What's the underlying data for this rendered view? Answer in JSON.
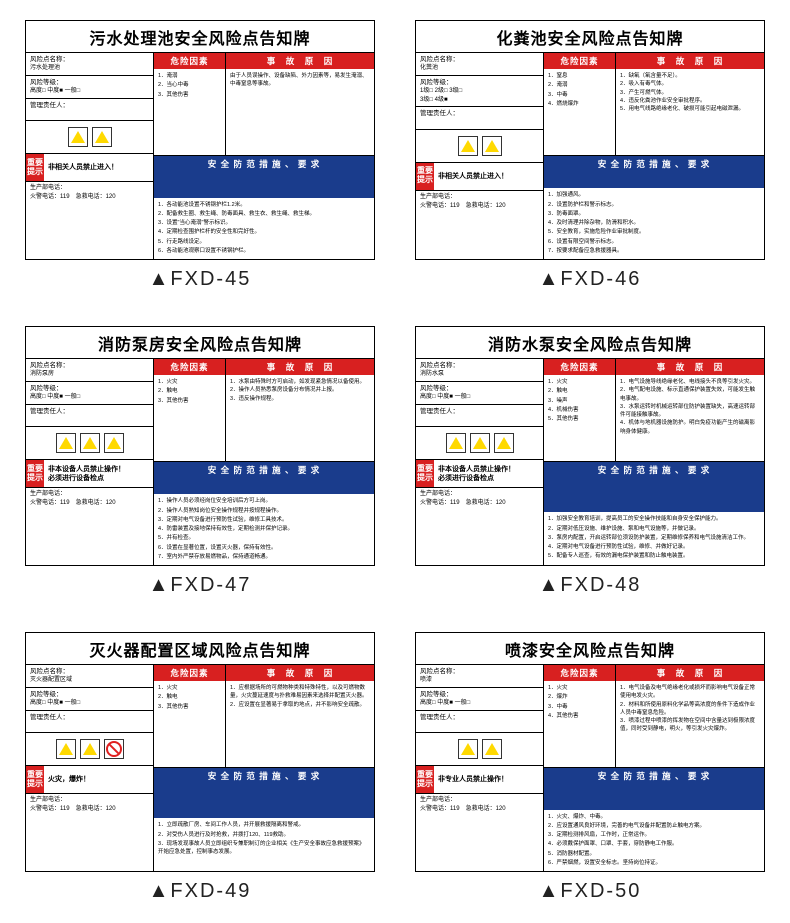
{
  "common": {
    "hazard_header": "危险因素",
    "cause_header": "事　故　原　因",
    "measure_header": "安 全 防 范 措 施 、 要 求",
    "tip_label": "重要提示",
    "name_label": "风险点名称：",
    "level_label": "风险等级：",
    "levels": "高度□ 中度■ 一般□",
    "manager_label": "管理责任人：",
    "phone1_label": "生产部电话：",
    "phone2": "火警电话：119　急救电话：120"
  },
  "cards": [
    {
      "id": "FXD-45",
      "title": "污水处理池安全风险点告知牌",
      "name": "污水处理池",
      "hazards": [
        "1．淹溺",
        "2．当心中毒",
        "3．其他伤害"
      ],
      "causes": "由于人员误操作、设备缺陷、外力因素等，易发生淹溺、中毒窒息等事故。",
      "measures": [
        "1．各动能池设置不锈钢护栏1.2米。",
        "2．配备救生圈、救生绳、防毒面具、救生衣、救生绳、救生梯。",
        "3．设置\"当心淹溺\"警示标识。",
        "4．定期检查围护栏杆的安全性和完好性。",
        "5．行走路线设定。",
        "6．各动能池观察口设置不锈钢护栏。"
      ],
      "tip": "非相关人员禁止进入！",
      "icons": [
        "y",
        "y"
      ]
    },
    {
      "id": "FXD-46",
      "title": "化粪池安全风险点告知牌",
      "name": "化粪池",
      "levels_alt": "1级□ 2级□ 3级□\n3级□ 4级■",
      "hazards": [
        "1．窒息",
        "2．淹溺",
        "3．中毒",
        "4．燃烧爆炸"
      ],
      "causes": "1．缺氧（氧含量不足）。\n2．吸入有毒气体。\n3．产生可燃气体。\n4．违反化粪池作业安全审批程序。\n5．用电气线路绝缘老化、破损可能引起电磁泄漏。",
      "measures": [
        "1．加强通风。",
        "2．设置防护栏和警示标志。",
        "3．防毒面罩。",
        "4．及时清理并除杂物，防滑和积水。",
        "5．安全教育，实施危险作业审批制度。",
        "6．设置有限空间警示标志。",
        "7．按要求配备应急救援器具。"
      ],
      "tip": "非相关人员禁止进入！",
      "icons": [
        "y",
        "y"
      ]
    },
    {
      "id": "FXD-47",
      "title": "消防泵房安全风险点告知牌",
      "name": "消防泵房",
      "hazards": [
        "1．火灾",
        "2．触电",
        "3．其他伤害"
      ],
      "causes": "1．水泵由特殊时方可启动，如发现紧急情况以备使用。\n2．操作人员熟悉泵房设备分布情况并上报。\n3．违反操作规程。",
      "measures": [
        "1．操作人员必须经岗位安全培训后方可上岗。",
        "2．操作人员熟知岗位安全操作规程并按规程操作。",
        "3．定期对电气设备进行预防性试验，维修工具技术。",
        "4．防雷装置及接地保持有效性，定期检测并保护记录。",
        "5．并有检查。",
        "6．设置在显著位置，设置灭火器，保持有效性。",
        "7．室内外严禁存放易燃物品，保持通道畅通。"
      ],
      "tip": "非本设备人员禁止操作！\n必须进行设备检点",
      "icons": [
        "y",
        "y",
        "y"
      ]
    },
    {
      "id": "FXD-48",
      "title": "消防水泵安全风险点告知牌",
      "name": "消防水泵",
      "hazards": [
        "1．火灾",
        "2．触电",
        "3．噪声",
        "4．机械伤害",
        "5．其他伤害"
      ],
      "causes": "1．电气设施导线绝缘老化、电线接头不良等引发火灾。\n2．电气配电设施、标示直通保护装置失效，可能发生触电事故。\n3．水泵运转时机械运转部位防护装置缺失，高速运转部件可能接触事故。\n4．机体与地机器设施防护。明白免疫功能产生的磁离影响身体健康。",
      "measures": [
        "1．加强安全教育培训，提高员工的安全操作技能和自身安全保护能力。",
        "2．定期对低压设施、维护设施、泵和电气设施等，并做记录。",
        "3．泵房内配置，开启运转部位须设防护装置，定期维修保养和电气设施清洁工作。",
        "4．定期对电气设备进行预防性试验，维修、并做好记录。",
        "5．配备专人巡查，有效的漏电保护装置和防止触电装置。"
      ],
      "tip": "非本设备人员禁止操作！\n必须进行设备检点",
      "icons": [
        "y",
        "y",
        "y"
      ]
    },
    {
      "id": "FXD-49",
      "title": "灭火器配置区域风险点告知牌",
      "name": "灭火器配置区域",
      "hazards": [
        "1．火灾",
        "2．触电",
        "3．其他伤害"
      ],
      "causes": "1．应根据场所的可燃物种类和特殊特性，以及可燃物数量，火灾蔓延速度与扑救难易因素来选择并配置灭火器。\n2．应设置在显著易于拿取的地点，并不影响安全疏散。",
      "measures": [
        "1．立即疏散厂房、车间工作人员，并开展救援隔离和警戒。",
        "2．对受伤人员进行及时抢救，并拨打120、119救助。",
        "3．现场发现事故人员立即组织专兼职制订的企业相关《生产安全事故应急救援预案》开始应急处置，控制事态发展。"
      ],
      "tip": "火灾，爆炸！",
      "icons": [
        "y",
        "y",
        "r"
      ]
    },
    {
      "id": "FXD-50",
      "title": "喷漆安全风险点告知牌",
      "name": "喷漆",
      "hazards": [
        "1．火灾",
        "2．爆炸",
        "3．中毒",
        "4．其他伤害"
      ],
      "causes": "1．电气设备及电气绝缘老化或损坏而影响电气设备正常使用电发火灾。\n2．材料和所使用原料化学品等高浓度的条件下造成作业人员中毒窒息危险。\n3．喷漆过程中喷漆的挥发物在空间中含量达到极限浓度值，同时受到静电，明火，等引发火灾爆炸。",
      "measures": [
        "1．火灾、爆炸、中毒。",
        "2．应设置通风良好环境，完善的电气设备并配置防止触电方案。",
        "3．定期检测排风扇，工作时，正常运作。",
        "4．必须戴保护面罩、口罩、手套，穿防静电工作服。",
        "5．消防器材配置。",
        "6．严禁烟燃，设置安全标志。坚持岗位持证。"
      ],
      "tip": "非专业人员禁止操作！",
      "icons": [
        "y",
        "y"
      ]
    }
  ]
}
